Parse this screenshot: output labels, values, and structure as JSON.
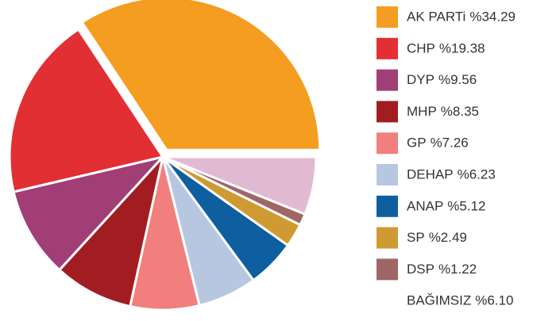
{
  "chart_data": {
    "type": "pie",
    "categories": [
      "AK PARTi",
      "CHP",
      "DYP",
      "MHP",
      "GP",
      "DEHAP",
      "ANAP",
      "SP",
      "DSP",
      "BAĞIMSIZ"
    ],
    "values": [
      34.29,
      19.38,
      9.56,
      8.35,
      7.26,
      6.23,
      5.12,
      2.49,
      1.22,
      6.1
    ],
    "value_labels": [
      "%34.29",
      "%19.38",
      "%9.56",
      "%8.35",
      "%7.26",
      "%6.23",
      "%5.12",
      "%2.49",
      "%1.22",
      "%6.10"
    ],
    "colors": [
      "#f59d20",
      "#e22f33",
      "#a03e75",
      "#a21d22",
      "#f07f7d",
      "#b7c7e1",
      "#0e5f9f",
      "#d09a32",
      "#9f6666",
      "#e2b9d3"
    ],
    "legend_swatch": [
      true,
      true,
      true,
      true,
      true,
      true,
      true,
      true,
      true,
      false
    ],
    "legend": "right"
  }
}
